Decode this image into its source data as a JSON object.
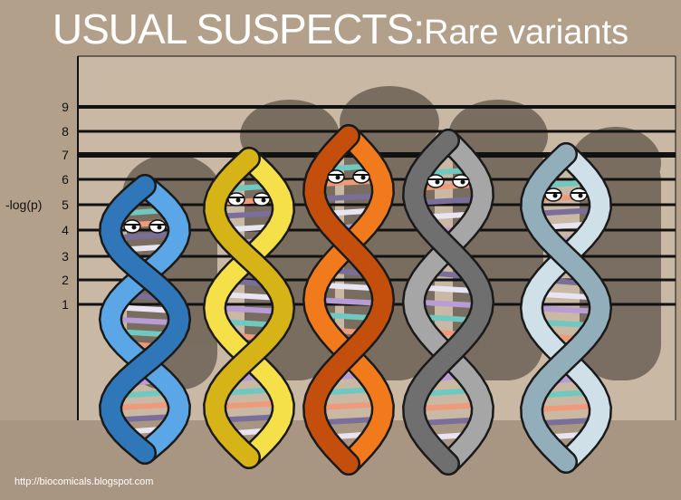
{
  "title": {
    "main": "USUAL SUSPECTS:",
    "sub": "Rare variants"
  },
  "axis": {
    "label": "-log(p)",
    "ticks": [
      "1",
      "2",
      "3",
      "4",
      "5",
      "6",
      "7",
      "8",
      "9"
    ]
  },
  "credit": "http://biocomicals.blogspot.com",
  "suspects": [
    {
      "name": "blue",
      "color": "#5aa6e6",
      "dark": "#2f77b8"
    },
    {
      "name": "yellow",
      "color": "#f5e04a",
      "dark": "#d6b316"
    },
    {
      "name": "orange",
      "color": "#f07a1c",
      "dark": "#c44f0c"
    },
    {
      "name": "gray",
      "color": "#a6a6a6",
      "dark": "#6f6f6f"
    },
    {
      "name": "lightblue",
      "color": "#cfe0e8",
      "dark": "#93aebb"
    }
  ]
}
